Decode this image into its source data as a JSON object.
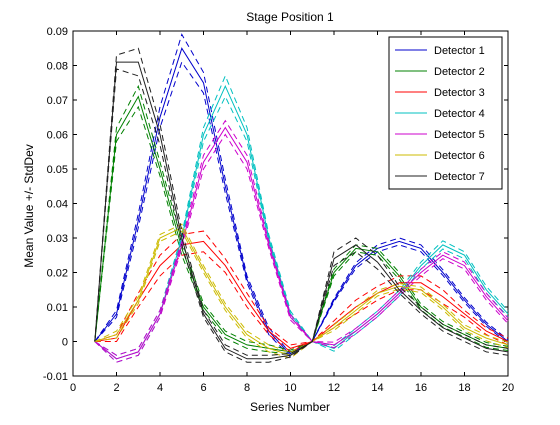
{
  "chart_data": {
    "type": "line",
    "title": "Stage Position 1",
    "xlabel": "Series Number",
    "ylabel": "Mean Value +/- StdDev",
    "xlim": [
      0,
      20
    ],
    "ylim": [
      -0.01,
      0.09
    ],
    "xticks": [
      "0",
      "2",
      "4",
      "6",
      "8",
      "10",
      "12",
      "14",
      "16",
      "18",
      "20"
    ],
    "yticks": [
      "-0.01",
      "0",
      "0.01",
      "0.02",
      "0.03",
      "0.04",
      "0.05",
      "0.06",
      "0.07",
      "0.08",
      "0.09"
    ],
    "grid": false,
    "legend_position": "top-right",
    "x": [
      1,
      2,
      3,
      4,
      5,
      6,
      7,
      8,
      9,
      10,
      11,
      12,
      13,
      14,
      15,
      16,
      17,
      18,
      19,
      20
    ],
    "series": [
      {
        "name": "Detector 1",
        "color": "#0000cc",
        "values": [
          0,
          0.008,
          0.035,
          0.065,
          0.085,
          0.075,
          0.045,
          0.018,
          0.003,
          -0.004,
          0,
          0.012,
          0.022,
          0.027,
          0.029,
          0.027,
          0.02,
          0.012,
          0.005,
          0
        ],
        "err": [
          0,
          0.001,
          0.002,
          0.003,
          0.004,
          0.003,
          0.002,
          0.001,
          0.001,
          0.0005,
          0,
          0.0005,
          0.0008,
          0.001,
          0.001,
          0.001,
          0.0008,
          0.0007,
          0.0006,
          0.0005
        ]
      },
      {
        "name": "Detector 2",
        "color": "#008000",
        "values": [
          0,
          0.06,
          0.071,
          0.05,
          0.027,
          0.01,
          0.002,
          -0.001,
          -0.002,
          -0.003,
          0,
          0.02,
          0.027,
          0.026,
          0.019,
          0.01,
          0.005,
          0.002,
          -0.001,
          -0.002
        ],
        "err": [
          0,
          0.002,
          0.003,
          0.002,
          0.002,
          0.001,
          0.001,
          0.001,
          0.001,
          0.0005,
          0,
          0.001,
          0.001,
          0.001,
          0.001,
          0.0008,
          0.0008,
          0.0007,
          0.0007,
          0.0006
        ]
      },
      {
        "name": "Detector 3",
        "color": "#ff0000",
        "values": [
          0,
          0.001,
          0.012,
          0.022,
          0.028,
          0.029,
          0.022,
          0.012,
          0.003,
          -0.002,
          0,
          0.005,
          0.01,
          0.014,
          0.017,
          0.017,
          0.013,
          0.008,
          0.003,
          0
        ],
        "err": [
          0,
          0.001,
          0.002,
          0.003,
          0.003,
          0.003,
          0.002,
          0.002,
          0.001,
          0.001,
          0,
          0.001,
          0.002,
          0.002,
          0.002,
          0.002,
          0.002,
          0.001,
          0.001,
          0.001
        ]
      },
      {
        "name": "Detector 4",
        "color": "#00c0c0",
        "values": [
          0,
          -0.005,
          -0.003,
          0.008,
          0.03,
          0.06,
          0.074,
          0.06,
          0.03,
          0.008,
          0,
          -0.002,
          0.003,
          0.008,
          0.014,
          0.022,
          0.028,
          0.025,
          0.015,
          0.008
        ],
        "err": [
          0,
          0.001,
          0.001,
          0.001,
          0.001,
          0.002,
          0.003,
          0.002,
          0.001,
          0.0008,
          0,
          0.0008,
          0.0008,
          0.0008,
          0.0008,
          0.001,
          0.0012,
          0.001,
          0.001,
          0.0008
        ]
      },
      {
        "name": "Detector 5",
        "color": "#cc00cc",
        "values": [
          0,
          -0.005,
          -0.003,
          0.008,
          0.028,
          0.052,
          0.062,
          0.052,
          0.028,
          0.007,
          0,
          -0.001,
          0.003,
          0.008,
          0.014,
          0.02,
          0.025,
          0.022,
          0.013,
          0.006
        ],
        "err": [
          0,
          0.001,
          0.001,
          0.001,
          0.001,
          0.002,
          0.002,
          0.002,
          0.001,
          0.0008,
          0,
          0.0008,
          0.0008,
          0.0008,
          0.0008,
          0.001,
          0.001,
          0.001,
          0.001,
          0.0008
        ]
      },
      {
        "name": "Detector 6",
        "color": "#ccbb00",
        "values": [
          0,
          0.002,
          0.012,
          0.03,
          0.033,
          0.021,
          0.01,
          0.002,
          -0.002,
          -0.004,
          0,
          0.004,
          0.009,
          0.014,
          0.016,
          0.015,
          0.01,
          0.004,
          0.001,
          -0.001
        ],
        "err": [
          0,
          0.001,
          0.001,
          0.001,
          0.001,
          0.001,
          0.001,
          0.001,
          0.001,
          0.0008,
          0,
          0.0008,
          0.0008,
          0.0008,
          0.0008,
          0.0008,
          0.0008,
          0.0008,
          0.0008,
          0.0008
        ]
      },
      {
        "name": "Detector 7",
        "color": "#202020",
        "values": [
          0,
          0.081,
          0.081,
          0.06,
          0.03,
          0.008,
          -0.002,
          -0.005,
          -0.005,
          -0.004,
          0,
          0.024,
          0.028,
          0.023,
          0.015,
          0.009,
          0.004,
          0.001,
          -0.002,
          -0.003
        ],
        "err": [
          0,
          0.002,
          0.004,
          0.003,
          0.002,
          0.001,
          0.001,
          0.001,
          0.001,
          0.0005,
          0,
          0.002,
          0.002,
          0.002,
          0.001,
          0.001,
          0.001,
          0.001,
          0.001,
          0.001
        ]
      }
    ]
  }
}
